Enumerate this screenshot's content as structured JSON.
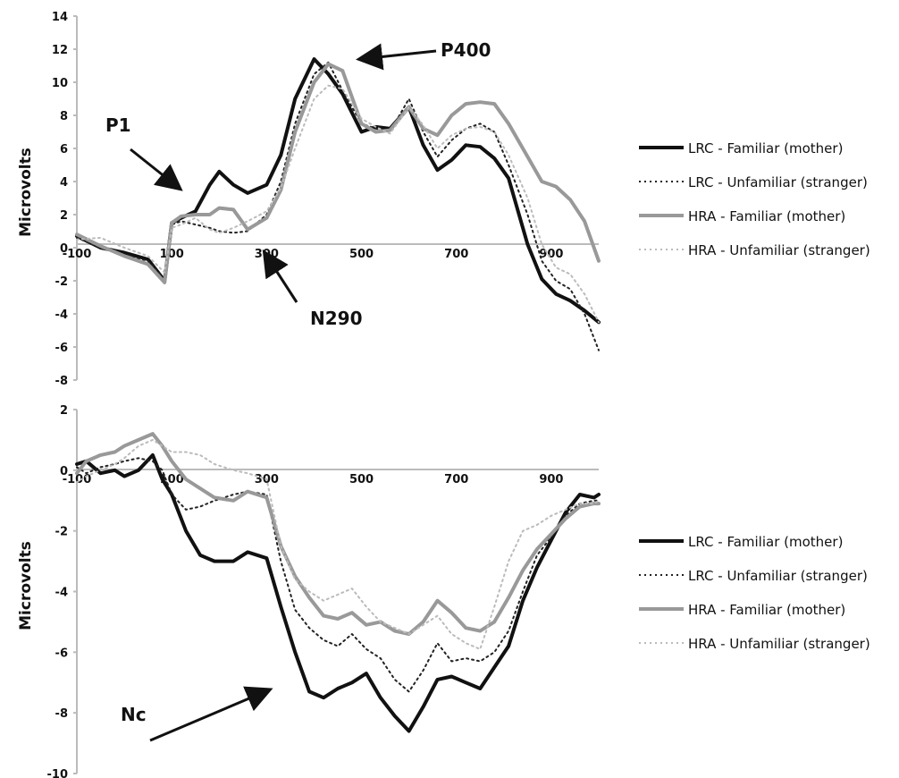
{
  "chart_data": [
    {
      "type": "line",
      "title": "",
      "xlabel": "",
      "ylabel": "Microvolts",
      "xlim": [
        -100,
        1000
      ],
      "ylim": [
        -8,
        14
      ],
      "x_ticks": [
        -100,
        100,
        300,
        500,
        700,
        900
      ],
      "y_ticks": [
        14,
        12,
        10,
        8,
        6,
        4,
        2,
        0,
        -2,
        -4,
        -6,
        -8
      ],
      "y_tick_labels": [
        "14",
        "12",
        "10",
        "8",
        "6",
        "4",
        "2",
        "0",
        "-2",
        "-4",
        "-6",
        "-8"
      ],
      "x_tick_labels": [
        "-100",
        "100",
        "300",
        "500",
        "700",
        "900"
      ],
      "grid": false,
      "legend_position": "right",
      "series": [
        {
          "name": "LRC - Familiar (mother)",
          "color": "#111111",
          "style": "solid-thick",
          "x": [
            -100,
            -50,
            0,
            50,
            85,
            100,
            120,
            150,
            180,
            200,
            230,
            260,
            300,
            330,
            360,
            400,
            430,
            460,
            500,
            530,
            560,
            600,
            630,
            660,
            690,
            720,
            750,
            780,
            810,
            850,
            880,
            910,
            940,
            970,
            1000
          ],
          "y": [
            0.7,
            0,
            -0.3,
            -0.7,
            -2.0,
            1.5,
            1.8,
            2.2,
            3.8,
            4.6,
            3.8,
            3.3,
            3.8,
            5.6,
            9.0,
            11.4,
            10.5,
            9.3,
            7.0,
            7.3,
            7.2,
            8.5,
            6.2,
            4.7,
            5.3,
            6.2,
            6.1,
            5.4,
            4.2,
            0.2,
            -1.9,
            -2.8,
            -3.2,
            -3.8,
            -4.5
          ]
        },
        {
          "name": "LRC - Unfamiliar (stranger)",
          "color": "#222222",
          "style": "dotted",
          "x": [
            -100,
            -50,
            0,
            50,
            85,
            100,
            120,
            150,
            180,
            200,
            230,
            260,
            300,
            330,
            360,
            400,
            430,
            460,
            500,
            530,
            560,
            600,
            630,
            660,
            690,
            720,
            750,
            780,
            810,
            850,
            880,
            910,
            940,
            970,
            1000
          ],
          "y": [
            0.6,
            0,
            -0.4,
            -0.8,
            -1.9,
            1.4,
            1.6,
            1.4,
            1.2,
            1.0,
            0.9,
            1.0,
            2.0,
            4.0,
            7.5,
            10.5,
            11.2,
            9.5,
            7.5,
            7.2,
            7.0,
            9.0,
            7.0,
            5.5,
            6.5,
            7.2,
            7.5,
            7.0,
            5.0,
            2.0,
            -0.8,
            -2.0,
            -2.5,
            -4.0,
            -6.2
          ]
        },
        {
          "name": "HRA - Familiar (mother)",
          "color": "#999999",
          "style": "solid-thick",
          "x": [
            -100,
            -50,
            0,
            50,
            85,
            100,
            120,
            150,
            180,
            200,
            230,
            260,
            300,
            330,
            360,
            400,
            430,
            460,
            500,
            530,
            560,
            600,
            630,
            660,
            690,
            720,
            750,
            780,
            810,
            850,
            880,
            910,
            940,
            970,
            1000
          ],
          "y": [
            0.8,
            0.1,
            -0.5,
            -1.0,
            -2.1,
            1.5,
            1.9,
            2.0,
            2.0,
            2.4,
            2.3,
            1.1,
            1.8,
            3.5,
            7.0,
            10.0,
            11.1,
            10.7,
            7.5,
            7.0,
            7.1,
            8.5,
            7.2,
            6.8,
            8.0,
            8.7,
            8.8,
            8.7,
            7.5,
            5.5,
            4.0,
            3.7,
            2.9,
            1.6,
            -0.8
          ]
        },
        {
          "name": "HRA - Unfamiliar (stranger)",
          "color": "#bbbbbb",
          "style": "dotted",
          "x": [
            -100,
            -50,
            0,
            50,
            85,
            100,
            120,
            150,
            180,
            200,
            230,
            260,
            300,
            330,
            360,
            400,
            430,
            460,
            500,
            530,
            560,
            600,
            630,
            660,
            690,
            720,
            750,
            780,
            810,
            850,
            880,
            910,
            940,
            970,
            1000
          ],
          "y": [
            0.5,
            0.6,
            0,
            -0.5,
            -1.5,
            1.2,
            1.4,
            1.8,
            1.1,
            0.9,
            1.2,
            1.6,
            2.2,
            3.6,
            6.0,
            9.0,
            9.8,
            9.6,
            7.8,
            7.3,
            6.9,
            8.5,
            7.4,
            6.0,
            6.8,
            7.2,
            7.3,
            7.0,
            5.6,
            3.0,
            0.2,
            -1.2,
            -1.6,
            -2.8,
            -4.5
          ]
        }
      ]
    },
    {
      "type": "line",
      "title": "",
      "xlabel": "",
      "ylabel": "Microvolts",
      "xlim": [
        -100,
        1000
      ],
      "ylim": [
        -10,
        2
      ],
      "x_ticks": [
        -100,
        100,
        300,
        500,
        700,
        900
      ],
      "y_ticks": [
        2,
        0,
        -2,
        -4,
        -6,
        -8,
        -10
      ],
      "y_tick_labels": [
        "2",
        "0",
        "-2",
        "-4",
        "-6",
        "-8",
        "-10"
      ],
      "x_tick_labels": [
        "-100",
        "100",
        "300",
        "500",
        "700",
        "900"
      ],
      "grid": false,
      "legend_position": "right",
      "series": [
        {
          "name": "LRC - Familiar (mother)",
          "color": "#111111",
          "style": "solid-thick",
          "x": [
            -100,
            -80,
            -50,
            -20,
            0,
            30,
            60,
            80,
            100,
            130,
            160,
            190,
            230,
            260,
            300,
            330,
            360,
            390,
            420,
            450,
            480,
            510,
            540,
            570,
            600,
            630,
            660,
            690,
            720,
            750,
            780,
            810,
            840,
            870,
            900,
            930,
            960,
            990,
            1000
          ],
          "y": [
            0.2,
            0.3,
            -0.1,
            0,
            -0.2,
            0,
            0.5,
            -0.3,
            -0.8,
            -2.0,
            -2.8,
            -3.0,
            -3.0,
            -2.7,
            -2.9,
            -4.5,
            -6.0,
            -7.3,
            -7.5,
            -7.2,
            -7.0,
            -6.7,
            -7.5,
            -8.1,
            -8.6,
            -7.8,
            -6.9,
            -6.8,
            -7.0,
            -7.2,
            -6.5,
            -5.8,
            -4.3,
            -3.2,
            -2.3,
            -1.4,
            -0.8,
            -0.9,
            -0.8
          ]
        },
        {
          "name": "LRC - Unfamiliar (stranger)",
          "color": "#222222",
          "style": "dotted",
          "x": [
            -100,
            -80,
            -50,
            -20,
            0,
            30,
            60,
            80,
            100,
            130,
            160,
            190,
            230,
            260,
            300,
            330,
            360,
            390,
            420,
            450,
            480,
            510,
            540,
            570,
            600,
            630,
            660,
            690,
            720,
            750,
            780,
            810,
            840,
            870,
            900,
            930,
            960,
            990,
            1000
          ],
          "y": [
            0.1,
            -0.1,
            0.1,
            0.2,
            0.3,
            0.4,
            0.3,
            0,
            -0.8,
            -1.3,
            -1.2,
            -1.0,
            -0.8,
            -0.7,
            -0.8,
            -3.0,
            -4.6,
            -5.2,
            -5.6,
            -5.8,
            -5.4,
            -5.9,
            -6.2,
            -6.9,
            -7.3,
            -6.6,
            -5.7,
            -6.3,
            -6.2,
            -6.3,
            -6.0,
            -5.3,
            -4.0,
            -2.8,
            -2.2,
            -1.5,
            -1.1,
            -1.0,
            -1.0
          ]
        },
        {
          "name": "HRA - Familiar (mother)",
          "color": "#999999",
          "style": "solid-thick",
          "x": [
            -100,
            -80,
            -50,
            -20,
            0,
            30,
            60,
            80,
            100,
            130,
            160,
            190,
            230,
            260,
            300,
            330,
            360,
            390,
            420,
            450,
            480,
            510,
            540,
            570,
            600,
            630,
            660,
            690,
            720,
            750,
            780,
            810,
            840,
            870,
            900,
            930,
            960,
            990,
            1000
          ],
          "y": [
            -0.1,
            0.3,
            0.5,
            0.6,
            0.8,
            1.0,
            1.2,
            0.8,
            0.3,
            -0.3,
            -0.6,
            -0.9,
            -1.0,
            -0.7,
            -0.9,
            -2.5,
            -3.5,
            -4.2,
            -4.8,
            -4.9,
            -4.7,
            -5.1,
            -5.0,
            -5.3,
            -5.4,
            -5.0,
            -4.3,
            -4.7,
            -5.2,
            -5.3,
            -5.0,
            -4.2,
            -3.3,
            -2.6,
            -2.1,
            -1.6,
            -1.2,
            -1.1,
            -1.1
          ]
        },
        {
          "name": "HRA - Unfamiliar (stranger)",
          "color": "#bbbbbb",
          "style": "dotted",
          "x": [
            -100,
            -80,
            -50,
            -20,
            0,
            30,
            60,
            80,
            100,
            130,
            160,
            190,
            230,
            260,
            300,
            330,
            360,
            390,
            420,
            450,
            480,
            510,
            540,
            570,
            600,
            630,
            660,
            690,
            720,
            750,
            780,
            810,
            840,
            870,
            900,
            930,
            960,
            990,
            1000
          ],
          "y": [
            -0.4,
            -0.2,
            0,
            0.2,
            0.4,
            0.8,
            1.0,
            0.8,
            0.6,
            0.6,
            0.5,
            0.2,
            0,
            -0.1,
            -0.3,
            -2.5,
            -3.6,
            -4.0,
            -4.3,
            -4.1,
            -3.9,
            -4.5,
            -5.0,
            -5.2,
            -5.4,
            -5.1,
            -4.8,
            -5.4,
            -5.7,
            -5.9,
            -4.5,
            -3.0,
            -2.0,
            -1.8,
            -1.5,
            -1.3,
            -1.1,
            -1.1,
            -1.0
          ]
        }
      ]
    }
  ],
  "annotations": {
    "p1": "P1",
    "p400": "P400",
    "n290": "N290",
    "nc": "Nc"
  }
}
